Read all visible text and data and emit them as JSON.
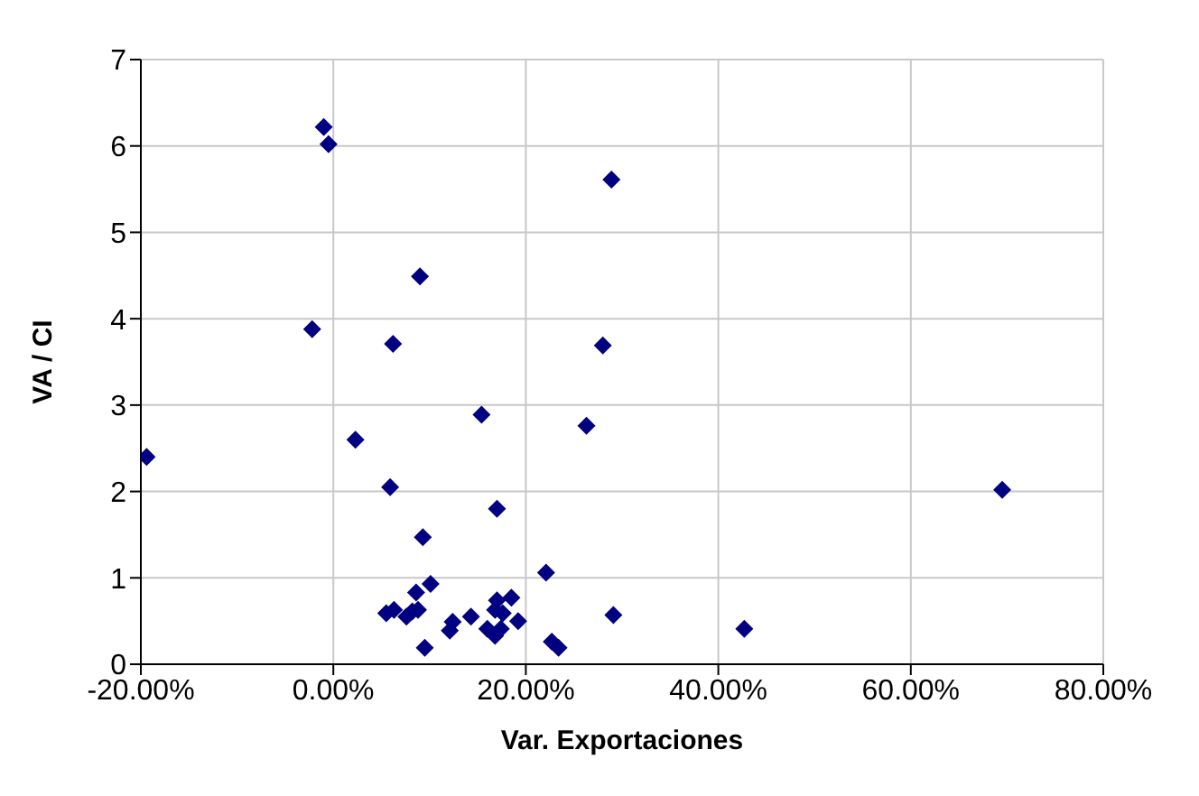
{
  "chart_data": {
    "type": "scatter",
    "xlabel": "Var. Exportaciones",
    "ylabel": "VA / CI",
    "xlim": [
      -20,
      80
    ],
    "xticks": [
      {
        "value": -20,
        "label": "-20.00%"
      },
      {
        "value": 0,
        "label": "0.00%"
      },
      {
        "value": 20,
        "label": "20.00%"
      },
      {
        "value": 40,
        "label": "40.00%"
      },
      {
        "value": 60,
        "label": "60.00%"
      },
      {
        "value": 80,
        "label": "80.00%"
      }
    ],
    "ylim": [
      0,
      7
    ],
    "yticks": [
      0,
      1,
      2,
      3,
      4,
      5,
      6,
      7
    ],
    "grid": true,
    "marker": "diamond",
    "series": [
      {
        "color": "#000080",
        "x": [
          -19.4,
          -1.0,
          -0.5,
          28.9,
          9.0,
          -2.2,
          6.2,
          28.0,
          15.4,
          26.3,
          2.3,
          5.9,
          69.5,
          17.0,
          9.3,
          22.1,
          10.1,
          8.6,
          5.5,
          6.3,
          7.6,
          8.2,
          8.8,
          9.5,
          12.1,
          12.4,
          14.3,
          16.0,
          16.8,
          17.0,
          16.8,
          17.6,
          17.4,
          18.5,
          19.2,
          22.7,
          23.4,
          29.1,
          42.7
        ],
        "values": [
          2.4,
          6.22,
          6.02,
          5.61,
          4.49,
          3.88,
          3.71,
          3.69,
          2.89,
          2.76,
          2.6,
          2.05,
          2.02,
          1.8,
          1.47,
          1.06,
          0.93,
          0.83,
          0.59,
          0.63,
          0.55,
          0.61,
          0.63,
          0.19,
          0.39,
          0.49,
          0.55,
          0.41,
          0.33,
          0.74,
          0.63,
          0.59,
          0.41,
          0.77,
          0.5,
          0.26,
          0.19,
          0.57,
          0.41
        ]
      }
    ]
  }
}
